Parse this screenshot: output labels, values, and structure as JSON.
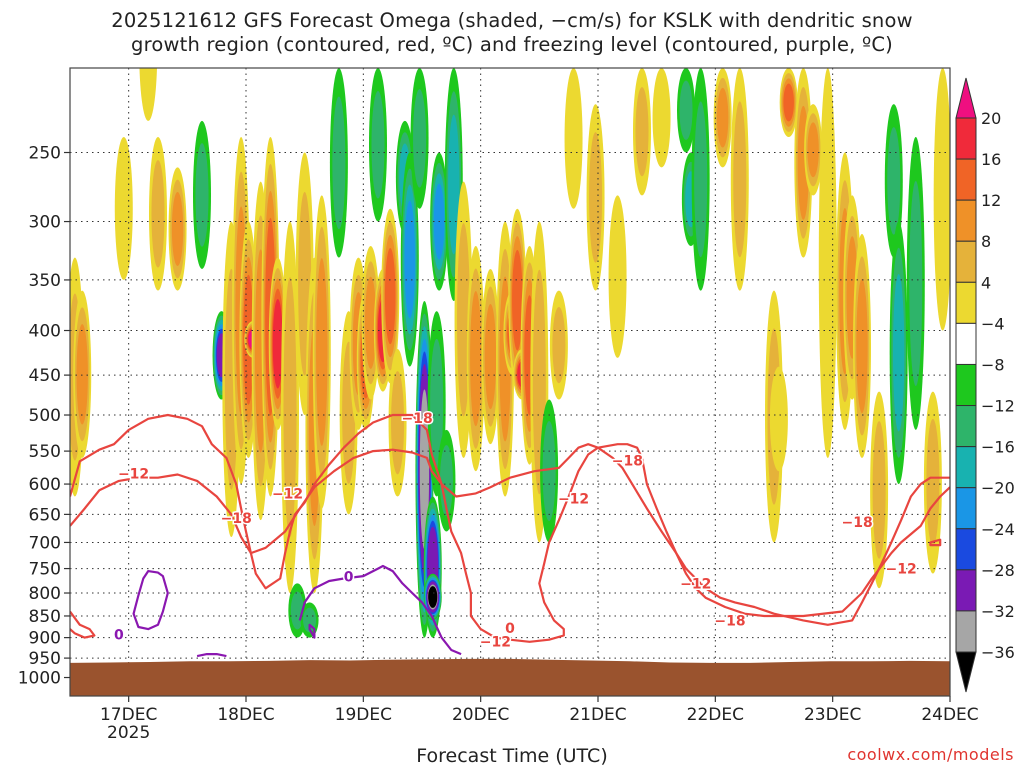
{
  "title_line1": "2025121612 GFS Forecast Omega (shaded, −cm/s) for KSLK with dendritic snow",
  "title_line2": "growth region (contoured, red, ºC) and freezing level (contoured, purple, ºC)",
  "xaxis_title": "Forecast Time (UTC)",
  "credit": "coolwx.com/models",
  "chart_data": {
    "type": "heatmap",
    "title": "2025121612 GFS Forecast Omega (shaded, −cm/s) for KSLK with dendritic snow growth region (contoured, red, ºC) and freezing level (contoured, purple, ºC)",
    "xlabel": "Forecast Time (UTC)",
    "ylabel": "",
    "x_range_hours": [
      0,
      180
    ],
    "y_scale": "log-pressure (hPa), inverted",
    "y_range": [
      1050,
      200
    ],
    "x_ticks": [
      {
        "label": "17DEC",
        "sub": "2025",
        "hour": 12
      },
      {
        "label": "18DEC",
        "sub": "",
        "hour": 36
      },
      {
        "label": "19DEC",
        "sub": "",
        "hour": 60
      },
      {
        "label": "20DEC",
        "sub": "",
        "hour": 84
      },
      {
        "label": "21DEC",
        "sub": "",
        "hour": 108
      },
      {
        "label": "22DEC",
        "sub": "",
        "hour": 132
      },
      {
        "label": "23DEC",
        "sub": "",
        "hour": 156
      },
      {
        "label": "24DEC",
        "sub": "",
        "hour": 180
      }
    ],
    "y_ticks": [
      250,
      300,
      350,
      400,
      450,
      500,
      550,
      600,
      650,
      700,
      750,
      800,
      850,
      900,
      950,
      1000
    ],
    "grid": "dotted",
    "colorbar": {
      "labels": [
        "20",
        "16",
        "12",
        "8",
        "4",
        "−4",
        "−8",
        "−12",
        "−16",
        "−20",
        "−24",
        "−28",
        "−32",
        "−36"
      ],
      "colors": [
        "#ef0f80",
        "#f02a3a",
        "#f06426",
        "#ef9128",
        "#e5b23a",
        "#ecd930",
        "#ffffff",
        "#1ec81e",
        "#2eb46a",
        "#18b2b0",
        "#1a96e6",
        "#1a4ae0",
        "#7a1ab4",
        "#a6a6a6",
        "#000000"
      ]
    },
    "omega_cells": [
      {
        "hour": 1,
        "p0": 330,
        "p1": 620,
        "v": 6
      },
      {
        "hour": 2.5,
        "p0": 360,
        "p1": 560,
        "v": 8
      },
      {
        "hour": 11,
        "p0": 240,
        "p1": 350,
        "v": 5
      },
      {
        "hour": 16,
        "p0": 160,
        "p1": 230,
        "v": 4
      },
      {
        "hour": 18,
        "p0": 240,
        "p1": 360,
        "v": 6
      },
      {
        "hour": 22,
        "p0": 260,
        "p1": 360,
        "v": 8
      },
      {
        "hour": 27,
        "p0": 230,
        "p1": 340,
        "v": -10
      },
      {
        "hour": 31,
        "p0": 380,
        "p1": 480,
        "v": -26
      },
      {
        "hour": 33,
        "p0": 300,
        "p1": 690,
        "v": 6
      },
      {
        "hour": 35,
        "p0": 240,
        "p1": 600,
        "v": 10
      },
      {
        "hour": 36.5,
        "p0": 300,
        "p1": 560,
        "v": 14
      },
      {
        "hour": 37.5,
        "p0": 390,
        "p1": 430,
        "v": 20
      },
      {
        "hour": 39,
        "p0": 270,
        "p1": 660,
        "v": 8
      },
      {
        "hour": 41,
        "p0": 240,
        "p1": 620,
        "v": 12
      },
      {
        "hour": 42.5,
        "p0": 330,
        "p1": 520,
        "v": 16
      },
      {
        "hour": 45,
        "p0": 300,
        "p1": 800,
        "v": 6
      },
      {
        "hour": 48,
        "p0": 250,
        "p1": 500,
        "v": 6
      },
      {
        "hour": 50,
        "p0": 330,
        "p1": 800,
        "v": 10
      },
      {
        "hour": 51.5,
        "p0": 280,
        "p1": 640,
        "v": 8
      },
      {
        "hour": 46.5,
        "p0": 780,
        "p1": 900,
        "v": -8
      },
      {
        "hour": 49,
        "p0": 820,
        "p1": 900,
        "v": -10
      },
      {
        "hour": 55,
        "p0": 200,
        "p1": 330,
        "v": -8
      },
      {
        "hour": 57,
        "p0": 380,
        "p1": 650,
        "v": 6
      },
      {
        "hour": 59,
        "p0": 330,
        "p1": 520,
        "v": 10
      },
      {
        "hour": 60.5,
        "p0": 360,
        "p1": 520,
        "v": 12
      },
      {
        "hour": 61.5,
        "p0": 320,
        "p1": 480,
        "v": 8
      },
      {
        "hour": 63,
        "p0": 200,
        "p1": 300,
        "v": -10
      },
      {
        "hour": 64,
        "p0": 340,
        "p1": 470,
        "v": 16
      },
      {
        "hour": 65.5,
        "p0": 290,
        "p1": 460,
        "v": 14
      },
      {
        "hour": 67,
        "p0": 420,
        "p1": 620,
        "v": 6
      },
      {
        "hour": 68.5,
        "p0": 230,
        "p1": 310,
        "v": -12
      },
      {
        "hour": 69.5,
        "p0": 250,
        "p1": 440,
        "v": -16
      },
      {
        "hour": 71.5,
        "p0": 200,
        "p1": 290,
        "v": -10
      },
      {
        "hour": 72.5,
        "p0": 370,
        "p1": 900,
        "v": -32
      },
      {
        "hour": 74.2,
        "p0": 620,
        "p1": 900,
        "v": -28
      },
      {
        "hour": 74.2,
        "p0": 760,
        "p1": 860,
        "v": -36
      },
      {
        "hour": 75.5,
        "p0": 250,
        "p1": 360,
        "v": -16
      },
      {
        "hour": 75,
        "p0": 380,
        "p1": 620,
        "v": -8
      },
      {
        "hour": 77,
        "p0": 520,
        "p1": 680,
        "v": -10
      },
      {
        "hour": 78.5,
        "p0": 200,
        "p1": 370,
        "v": -12
      },
      {
        "hour": 80.5,
        "p0": 270,
        "p1": 560,
        "v": 6
      },
      {
        "hour": 83,
        "p0": 320,
        "p1": 580,
        "v": 8
      },
      {
        "hour": 86,
        "p0": 340,
        "p1": 540,
        "v": 10
      },
      {
        "hour": 89,
        "p0": 300,
        "p1": 620,
        "v": 8
      },
      {
        "hour": 90.5,
        "p0": 360,
        "p1": 450,
        "v": 14
      },
      {
        "hour": 91.5,
        "p0": 290,
        "p1": 470,
        "v": 14
      },
      {
        "hour": 92.5,
        "p0": 420,
        "p1": 480,
        "v": 16
      },
      {
        "hour": 94,
        "p0": 320,
        "p1": 570,
        "v": 12
      },
      {
        "hour": 96,
        "p0": 300,
        "p1": 700,
        "v": 6
      },
      {
        "hour": 98,
        "p0": 480,
        "p1": 700,
        "v": -10
      },
      {
        "hour": 100,
        "p0": 360,
        "p1": 480,
        "v": 6
      },
      {
        "hour": 103,
        "p0": 200,
        "p1": 290,
        "v": 4
      },
      {
        "hour": 107.5,
        "p0": 220,
        "p1": 360,
        "v": 6
      },
      {
        "hour": 112,
        "p0": 280,
        "p1": 430,
        "v": 4
      },
      {
        "hour": 117,
        "p0": 200,
        "p1": 280,
        "v": 6
      },
      {
        "hour": 121,
        "p0": 200,
        "p1": 260,
        "v": 4
      },
      {
        "hour": 126,
        "p0": 200,
        "p1": 250,
        "v": -10
      },
      {
        "hour": 127,
        "p0": 250,
        "p1": 320,
        "v": -12
      },
      {
        "hour": 129,
        "p0": 200,
        "p1": 360,
        "v": -8
      },
      {
        "hour": 133.5,
        "p0": 200,
        "p1": 260,
        "v": 10
      },
      {
        "hour": 137,
        "p0": 200,
        "p1": 360,
        "v": 6
      },
      {
        "hour": 144,
        "p0": 360,
        "p1": 700,
        "v": 6
      },
      {
        "hour": 145,
        "p0": 440,
        "p1": 580,
        "v": 4
      },
      {
        "hour": 147,
        "p0": 200,
        "p1": 240,
        "v": 12
      },
      {
        "hour": 150,
        "p0": 200,
        "p1": 330,
        "v": 10
      },
      {
        "hour": 152,
        "p0": 220,
        "p1": 280,
        "v": 8
      },
      {
        "hour": 155,
        "p0": 200,
        "p1": 560,
        "v": 4
      },
      {
        "hour": 158.5,
        "p0": 250,
        "p1": 520,
        "v": 8
      },
      {
        "hour": 160,
        "p0": 280,
        "p1": 480,
        "v": 10
      },
      {
        "hour": 162,
        "p0": 310,
        "p1": 560,
        "v": 8
      },
      {
        "hour": 165.5,
        "p0": 470,
        "p1": 790,
        "v": 6
      },
      {
        "hour": 168.5,
        "p0": 220,
        "p1": 330,
        "v": -8
      },
      {
        "hour": 169.5,
        "p0": 300,
        "p1": 600,
        "v": -12
      },
      {
        "hour": 173,
        "p0": 240,
        "p1": 520,
        "v": -10
      },
      {
        "hour": 176.5,
        "p0": 470,
        "p1": 760,
        "v": 6
      },
      {
        "hour": 178.5,
        "p0": 200,
        "p1": 400,
        "v": 4
      }
    ],
    "terrain_color": "#9a532e",
    "contour_labels": [
      {
        "text": "−12",
        "hour": 13,
        "p": 585,
        "color": "#e8453f"
      },
      {
        "text": "−12",
        "hour": 44.5,
        "p": 617,
        "color": "#e8453f"
      },
      {
        "text": "−18",
        "hour": 34,
        "p": 658,
        "color": "#e8453f"
      },
      {
        "text": "−18",
        "hour": 71,
        "p": 505,
        "color": "#e8453f"
      },
      {
        "text": "−12",
        "hour": 103,
        "p": 625,
        "color": "#e8453f"
      },
      {
        "text": "−18",
        "hour": 114,
        "p": 565,
        "color": "#e8453f"
      },
      {
        "text": "−12",
        "hour": 128,
        "p": 782,
        "color": "#e8453f"
      },
      {
        "text": "−12",
        "hour": 87,
        "p": 912,
        "color": "#e8453f"
      },
      {
        "text": "−18",
        "hour": 135,
        "p": 862,
        "color": "#e8453f"
      },
      {
        "text": "−18",
        "hour": 161,
        "p": 665,
        "color": "#e8453f"
      },
      {
        "text": "−12",
        "hour": 170,
        "p": 752,
        "color": "#e8453f"
      },
      {
        "text": "0",
        "hour": 90,
        "p": 880,
        "color": "#e8453f"
      },
      {
        "text": "0",
        "hour": 10,
        "p": 895,
        "color": "#8a17b0"
      },
      {
        "text": "0",
        "hour": 57,
        "p": 768,
        "color": "#8a17b0"
      }
    ]
  }
}
